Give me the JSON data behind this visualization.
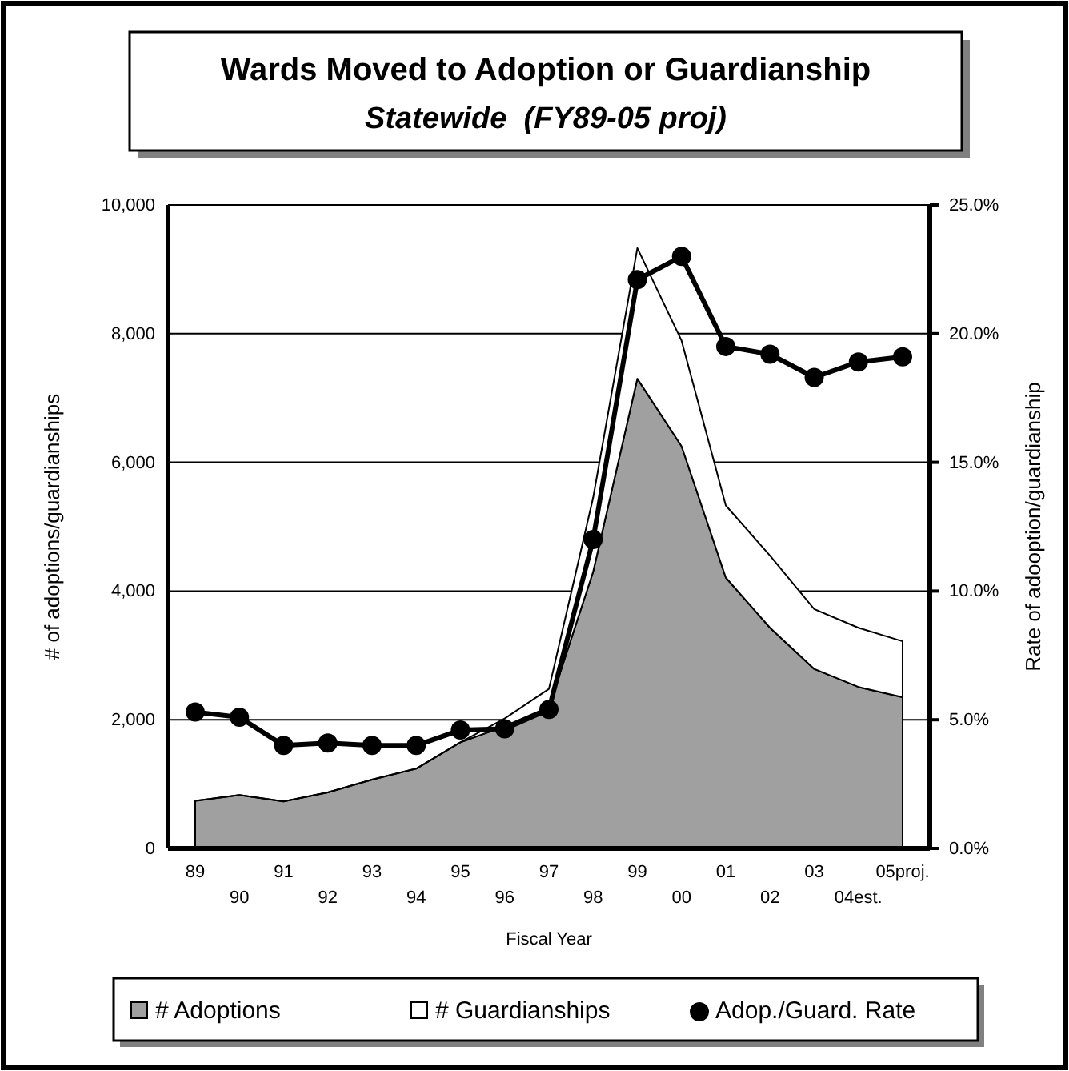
{
  "chart_data": {
    "type": "area",
    "title": "Wards Moved to Adoption or Guardianship",
    "subtitle": "Statewide  (FY89-05 proj)",
    "xlabel": "Fiscal Year",
    "ylabel": "# of adoptions/guardianships",
    "y2label": "Rate of adooption/guardianship",
    "categories": [
      "89",
      "90",
      "91",
      "92",
      "93",
      "94",
      "95",
      "96",
      "97",
      "98",
      "99",
      "00",
      "01",
      "02",
      "03",
      "04est.",
      "05proj."
    ],
    "stacked": true,
    "series": [
      {
        "name": "# Adoptions",
        "color": "#a0a0a0",
        "values": [
          740,
          830,
          730,
          870,
          1070,
          1240,
          1650,
          1900,
          2200,
          4300,
          7300,
          6250,
          4210,
          3430,
          2790,
          2510,
          2350
        ]
      },
      {
        "name": "# Guardianships",
        "color": "#ffffff",
        "values": [
          0,
          0,
          0,
          0,
          0,
          0,
          0,
          120,
          280,
          1150,
          2030,
          1640,
          1120,
          1120,
          930,
          920,
          870
        ]
      },
      {
        "name": "Adop./Guard. Rate",
        "type": "line",
        "axis": "y2",
        "marker": "circle",
        "color": "#000000",
        "values": [
          5.3,
          5.1,
          4.0,
          4.1,
          4.0,
          4.0,
          4.6,
          4.65,
          5.4,
          12.0,
          22.1,
          23.0,
          19.5,
          19.2,
          18.3,
          18.9,
          19.1
        ]
      }
    ],
    "ylim": [
      0,
      10000
    ],
    "yticks": [
      0,
      {
        "value": 2000,
        "label": "2,000"
      },
      {
        "value": 4000,
        "label": "4,000"
      },
      {
        "value": 6000,
        "label": "6,000"
      },
      {
        "value": 8000,
        "label": "8,000"
      },
      {
        "value": 10000,
        "label": "10,000"
      }
    ],
    "y2lim": [
      0,
      25
    ],
    "y2ticks": [
      {
        "value": 0,
        "label": "0.0%"
      },
      {
        "value": 5,
        "label": "5.0%"
      },
      {
        "value": 10,
        "label": "10.0%"
      },
      {
        "value": 15,
        "label": "15.0%"
      },
      {
        "value": 20,
        "label": "20.0%"
      },
      {
        "value": 25,
        "label": "25.0%"
      }
    ],
    "grid": "y",
    "legend": "bottom"
  }
}
